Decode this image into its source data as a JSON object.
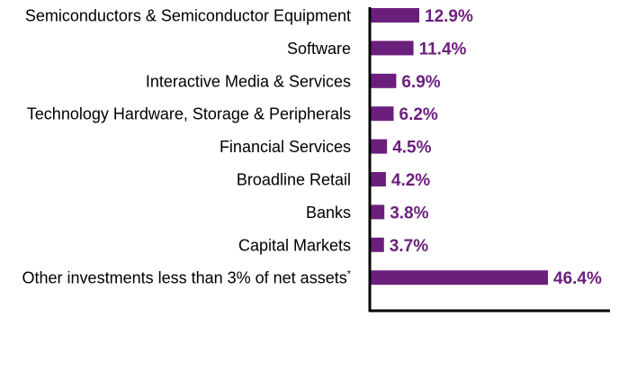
{
  "chart_data": {
    "type": "bar",
    "orientation": "horizontal",
    "categories": [
      "Semiconductors & Semiconductor Equipment",
      "Software",
      "Interactive Media & Services",
      "Technology Hardware, Storage & Peripherals",
      "Financial Services",
      "Broadline Retail",
      "Banks",
      "Capital Markets",
      "Other investments less than 3% of net assets"
    ],
    "footnote_marks": [
      "",
      "",
      "",
      "",
      "",
      "",
      "",
      "",
      "*"
    ],
    "values": [
      12.9,
      11.4,
      6.9,
      6.2,
      4.5,
      4.2,
      3.8,
      3.7,
      46.4
    ],
    "value_labels": [
      "12.9%",
      "11.4%",
      "6.9%",
      "6.2%",
      "4.5%",
      "4.2%",
      "3.8%",
      "3.7%",
      "46.4%"
    ],
    "title": "",
    "xlabel": "",
    "ylabel": "",
    "xlim": [
      0,
      46.4
    ],
    "grid": false,
    "legend": "none",
    "colors": {
      "bar": "#6b1f7c",
      "value_label": "#6b1f7c",
      "axis": "#000000",
      "category_label": "#000000"
    }
  }
}
